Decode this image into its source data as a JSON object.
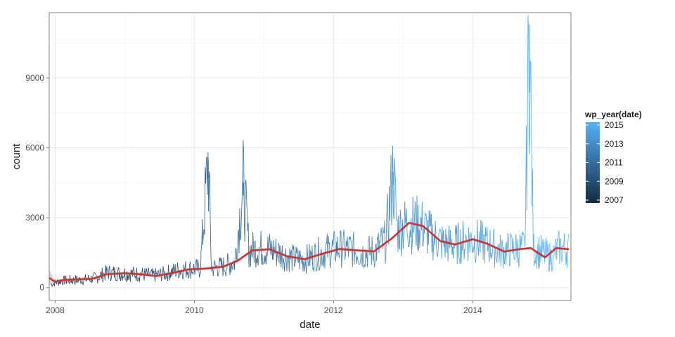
{
  "chart_data": {
    "type": "line",
    "title": "",
    "xlabel": "date",
    "ylabel": "count",
    "x_ticks": [
      "2008",
      "2010",
      "2012",
      "2014"
    ],
    "y_ticks": [
      "0",
      "3000",
      "6000",
      "9000"
    ],
    "xlim": [
      "2007-12-01",
      "2015-05-31"
    ],
    "ylim": [
      -550,
      11800
    ],
    "grid": true,
    "legend_position": "right",
    "legend": {
      "title": "wp_year(date)",
      "labels": [
        "2015",
        "2013",
        "2011",
        "2009",
        "2007"
      ],
      "low_color": "#132B43",
      "high_color": "#56B1F7"
    },
    "series": [
      {
        "style": "daily-counts",
        "color": "gradient by year",
        "points": [
          {
            "x": "2007-12-10",
            "y": 150
          },
          {
            "x": "2008-02-01",
            "y": 300
          },
          {
            "x": "2008-04-01",
            "y": 320
          },
          {
            "x": "2008-06-01",
            "y": 340
          },
          {
            "x": "2008-08-01",
            "y": 420
          },
          {
            "x": "2008-10-01",
            "y": 650
          },
          {
            "x": "2008-12-01",
            "y": 620
          },
          {
            "x": "2009-02-01",
            "y": 600
          },
          {
            "x": "2009-04-01",
            "y": 580
          },
          {
            "x": "2009-06-01",
            "y": 520
          },
          {
            "x": "2009-08-01",
            "y": 600
          },
          {
            "x": "2009-10-01",
            "y": 750
          },
          {
            "x": "2009-12-01",
            "y": 800
          },
          {
            "x": "2010-02-01",
            "y": 820
          },
          {
            "x": "2010-03-15",
            "y": 5500
          },
          {
            "x": "2010-04-01",
            "y": 850
          },
          {
            "x": "2010-06-01",
            "y": 900
          },
          {
            "x": "2010-08-01",
            "y": 1100
          },
          {
            "x": "2010-09-15",
            "y": 4500
          },
          {
            "x": "2010-10-15",
            "y": 1600
          },
          {
            "x": "2010-12-01",
            "y": 1700
          },
          {
            "x": "2011-02-01",
            "y": 1650
          },
          {
            "x": "2011-04-01",
            "y": 1450
          },
          {
            "x": "2011-06-01",
            "y": 1250
          },
          {
            "x": "2011-08-01",
            "y": 1200
          },
          {
            "x": "2011-10-01",
            "y": 1400
          },
          {
            "x": "2011-12-01",
            "y": 1600
          },
          {
            "x": "2012-02-01",
            "y": 1700
          },
          {
            "x": "2012-04-01",
            "y": 1650
          },
          {
            "x": "2012-06-01",
            "y": 1500
          },
          {
            "x": "2012-08-01",
            "y": 1550
          },
          {
            "x": "2012-10-01",
            "y": 2000
          },
          {
            "x": "2012-11-10",
            "y": 4950
          },
          {
            "x": "2012-12-01",
            "y": 2500
          },
          {
            "x": "2013-02-01",
            "y": 2750
          },
          {
            "x": "2013-04-01",
            "y": 2700
          },
          {
            "x": "2013-06-01",
            "y": 2200
          },
          {
            "x": "2013-08-01",
            "y": 1900
          },
          {
            "x": "2013-10-01",
            "y": 1850
          },
          {
            "x": "2013-12-01",
            "y": 2050
          },
          {
            "x": "2014-02-01",
            "y": 2000
          },
          {
            "x": "2014-04-01",
            "y": 1800
          },
          {
            "x": "2014-06-01",
            "y": 1550
          },
          {
            "x": "2014-08-01",
            "y": 1650
          },
          {
            "x": "2014-10-01",
            "y": 1700
          },
          {
            "x": "2014-10-25",
            "y": 11300
          },
          {
            "x": "2014-11-15",
            "y": 1650
          },
          {
            "x": "2015-01-01",
            "y": 1500
          },
          {
            "x": "2015-02-15",
            "y": 1300
          },
          {
            "x": "2015-04-01",
            "y": 1700
          },
          {
            "x": "2015-05-20",
            "y": 1650
          }
        ]
      },
      {
        "style": "smooth-trend",
        "color": "#cc3333",
        "points": [
          {
            "x": "2007-12-01",
            "y": 420
          },
          {
            "x": "2008-01-01",
            "y": 250
          },
          {
            "x": "2008-02-15",
            "y": 330
          },
          {
            "x": "2008-05-01",
            "y": 360
          },
          {
            "x": "2008-07-15",
            "y": 380
          },
          {
            "x": "2008-10-01",
            "y": 580
          },
          {
            "x": "2009-01-01",
            "y": 620
          },
          {
            "x": "2009-04-01",
            "y": 570
          },
          {
            "x": "2009-06-15",
            "y": 500
          },
          {
            "x": "2009-09-01",
            "y": 620
          },
          {
            "x": "2009-12-01",
            "y": 780
          },
          {
            "x": "2010-03-01",
            "y": 820
          },
          {
            "x": "2010-06-01",
            "y": 900
          },
          {
            "x": "2010-08-15",
            "y": 1150
          },
          {
            "x": "2010-11-01",
            "y": 1600
          },
          {
            "x": "2011-02-01",
            "y": 1650
          },
          {
            "x": "2011-05-01",
            "y": 1350
          },
          {
            "x": "2011-08-01",
            "y": 1220
          },
          {
            "x": "2011-11-01",
            "y": 1450
          },
          {
            "x": "2012-02-01",
            "y": 1660
          },
          {
            "x": "2012-05-01",
            "y": 1600
          },
          {
            "x": "2012-08-01",
            "y": 1560
          },
          {
            "x": "2012-11-01",
            "y": 2100
          },
          {
            "x": "2013-02-01",
            "y": 2780
          },
          {
            "x": "2013-04-15",
            "y": 2650
          },
          {
            "x": "2013-07-15",
            "y": 2000
          },
          {
            "x": "2013-10-01",
            "y": 1850
          },
          {
            "x": "2014-01-01",
            "y": 2080
          },
          {
            "x": "2014-03-15",
            "y": 1900
          },
          {
            "x": "2014-06-15",
            "y": 1550
          },
          {
            "x": "2014-09-01",
            "y": 1650
          },
          {
            "x": "2014-11-01",
            "y": 1700
          },
          {
            "x": "2015-01-15",
            "y": 1300
          },
          {
            "x": "2015-03-15",
            "y": 1700
          },
          {
            "x": "2015-05-20",
            "y": 1650
          }
        ]
      }
    ]
  }
}
